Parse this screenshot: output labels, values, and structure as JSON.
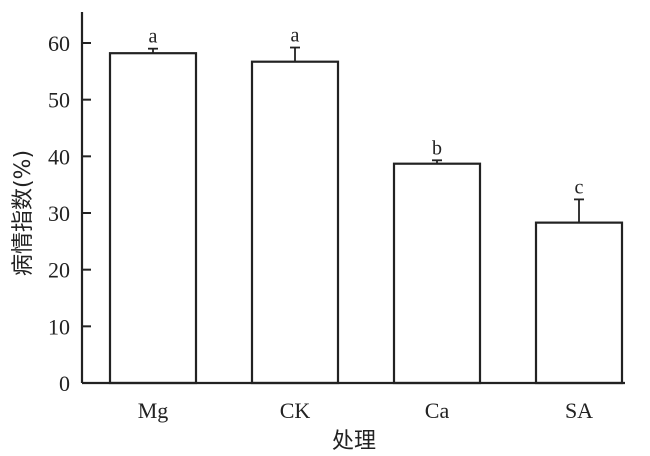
{
  "chart_data": {
    "type": "bar",
    "title": "",
    "xlabel": "处理",
    "ylabel": "病情指数(%)",
    "categories": [
      "Mg",
      "CK",
      "Ca",
      "SA"
    ],
    "values": [
      58.2,
      56.7,
      38.7,
      28.3
    ],
    "errors": [
      0.8,
      2.5,
      0.6,
      4.1
    ],
    "significance": [
      "a",
      "a",
      "b",
      "c"
    ],
    "ylim": [
      0,
      60
    ],
    "yticks": [
      0,
      10,
      20,
      30,
      40,
      50,
      60
    ],
    "grid": false,
    "legend": "none"
  }
}
